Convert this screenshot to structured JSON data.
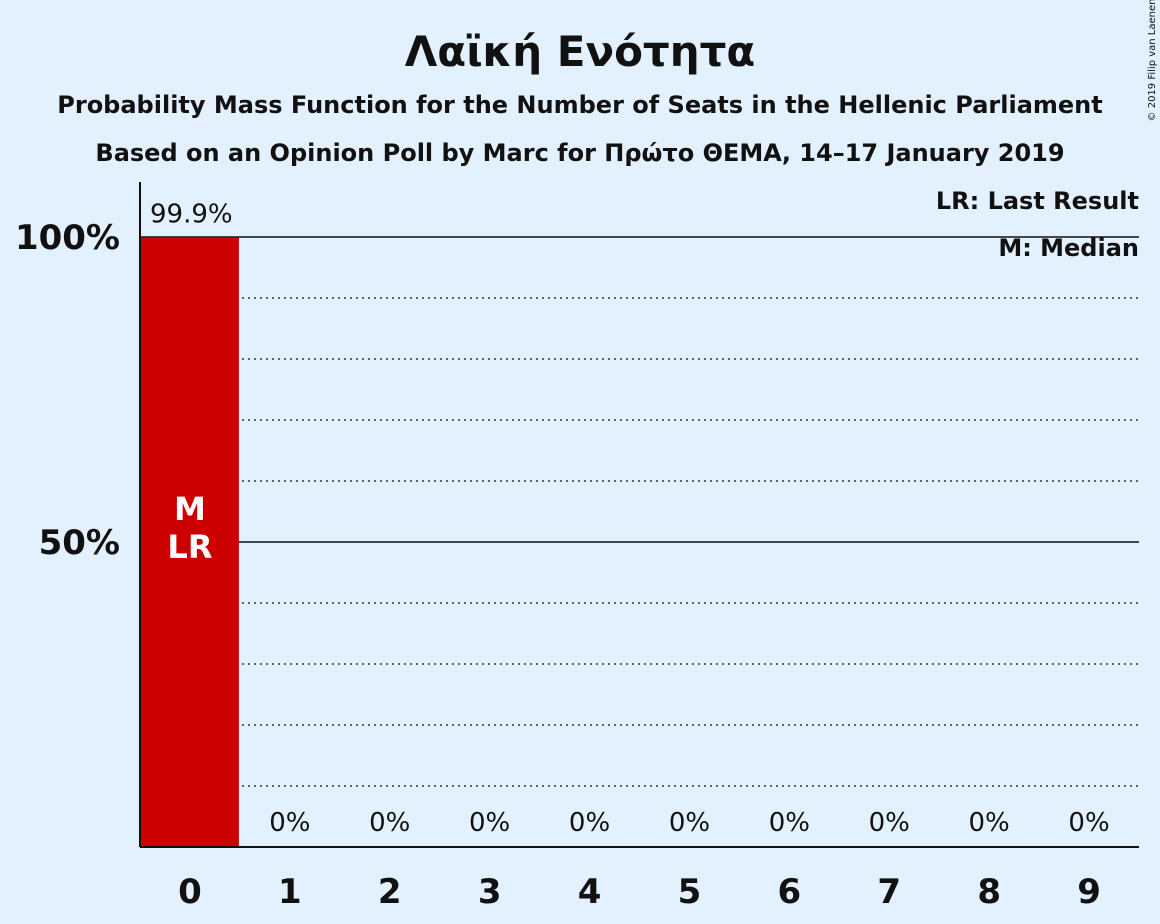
{
  "chart_data": {
    "type": "bar",
    "title": "Λαϊκή Ενότητα",
    "subtitle": "Probability Mass Function for the Number of Seats in the Hellenic Parliament",
    "subtitle2": "Based on an Opinion Poll by Marc for Πρώτο ΘΕΜΑ, 14–17 January 2019",
    "copyright": "© 2019 Filip van Laenen",
    "categories": [
      "0",
      "1",
      "2",
      "3",
      "4",
      "5",
      "6",
      "7",
      "8",
      "9"
    ],
    "values": [
      99.9,
      0,
      0,
      0,
      0,
      0,
      0,
      0,
      0,
      0
    ],
    "data_labels": [
      "99.9%",
      "0%",
      "0%",
      "0%",
      "0%",
      "0%",
      "0%",
      "0%",
      "0%",
      "0%"
    ],
    "bar_marker": "M\nLR",
    "ylim": [
      0,
      100
    ],
    "yticks": [
      {
        "value": 50,
        "label": "50%"
      },
      {
        "value": 100,
        "label": "100%"
      }
    ],
    "minor_gridlines": [
      10,
      20,
      30,
      40,
      60,
      70,
      80,
      90
    ],
    "legend": {
      "placement": "top-right",
      "items": [
        "LR: Last Result",
        "M: Median"
      ]
    },
    "bar_color": "#cc0000",
    "marker_text_color": "#ffffff",
    "background_color": "#e3f0fd",
    "grid": true
  }
}
